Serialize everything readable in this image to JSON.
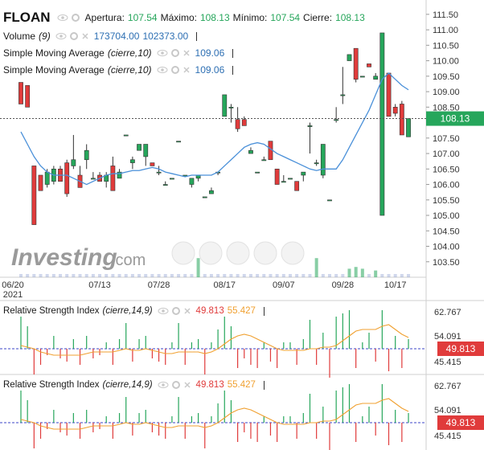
{
  "header": {
    "symbol": "FLOAN",
    "open_label": "Apertura:",
    "open": "107.54",
    "high_label": "Máximo:",
    "high": "108.13",
    "low_label": "Mínimo:",
    "low": "107.54",
    "close_label": "Cierre:",
    "close": "108.13"
  },
  "volume_legend": {
    "label": "Volume",
    "param": "(9)",
    "v1": "173704.00",
    "v2": "102373.00"
  },
  "sma_legends": [
    {
      "label": "Simple Moving Average",
      "param": "(cierre,10)",
      "value": "109.06"
    },
    {
      "label": "Simple Moving Average",
      "param": "(cierre,10)",
      "value": "109.06"
    }
  ],
  "rsi_panels": [
    {
      "label": "Relative Strength Index",
      "param": "(cierre,14,9)",
      "v1": "49.813",
      "v2": "55.427",
      "scale": [
        "62.767",
        "54.091",
        "45.415"
      ],
      "current": "49.813"
    },
    {
      "label": "Relative Strength Index",
      "param": "(cierre,14,9)",
      "v1": "49.813",
      "v2": "55.427",
      "scale": [
        "62.767",
        "54.091",
        "45.415"
      ],
      "current": "49.813"
    }
  ],
  "watermark": {
    "brand": "Investing",
    "suffix": ".com"
  },
  "colors": {
    "up": "#26a65b",
    "down": "#e03b3b",
    "sma": "#4a90d9",
    "rsi_signal": "#f0a030",
    "price_tag": "#26a65b",
    "rsi_tag": "#e03b3b"
  },
  "chart_data": {
    "type": "candlestick",
    "price_axis": [
      "111.50",
      "111.00",
      "110.50",
      "110.00",
      "109.50",
      "109.00",
      "108.50",
      "108.00",
      "107.50",
      "107.00",
      "106.50",
      "106.00",
      "105.50",
      "105.00",
      "104.50",
      "104.00",
      "103.50"
    ],
    "ylim": [
      103.0,
      111.6
    ],
    "current_price": "108.13",
    "x_labels": [
      "06/20\n2021",
      "07/13",
      "07/28",
      "08/17",
      "09/07",
      "09/28",
      "10/17"
    ],
    "candles": [
      {
        "o": 109.3,
        "h": 109.3,
        "l": 108.6,
        "c": 108.6
      },
      {
        "o": 109.2,
        "h": 109.2,
        "l": 108.5,
        "c": 108.5
      },
      {
        "o": 106.6,
        "h": 106.6,
        "l": 104.7,
        "c": 104.7
      },
      {
        "o": 106.3,
        "h": 106.3,
        "l": 105.8,
        "c": 105.8
      },
      {
        "o": 106.0,
        "h": 106.5,
        "l": 105.9,
        "c": 106.4
      },
      {
        "o": 106.1,
        "h": 106.6,
        "l": 106.0,
        "c": 106.5
      },
      {
        "o": 106.5,
        "h": 106.6,
        "l": 106.1,
        "c": 106.1
      },
      {
        "o": 106.7,
        "h": 106.8,
        "l": 105.6,
        "c": 105.7
      },
      {
        "o": 106.6,
        "h": 107.6,
        "l": 106.5,
        "c": 106.8
      },
      {
        "o": 106.3,
        "h": 106.6,
        "l": 105.9,
        "c": 105.9
      },
      {
        "o": 106.8,
        "h": 107.3,
        "l": 106.5,
        "c": 107.1
      },
      {
        "o": 106.2,
        "h": 106.4,
        "l": 106.2,
        "c": 106.2
      },
      {
        "o": 106.3,
        "h": 106.4,
        "l": 106.1,
        "c": 106.1
      },
      {
        "o": 106.1,
        "h": 106.4,
        "l": 105.9,
        "c": 106.3
      },
      {
        "o": 106.6,
        "h": 106.9,
        "l": 105.8,
        "c": 105.8
      },
      {
        "o": 106.2,
        "h": 106.5,
        "l": 106.2,
        "c": 106.4
      },
      {
        "o": 107.6,
        "h": 107.6,
        "l": 107.6,
        "c": 107.6
      },
      {
        "o": 106.7,
        "h": 106.9,
        "l": 106.5,
        "c": 106.8
      },
      {
        "o": 107.1,
        "h": 107.3,
        "l": 107.1,
        "c": 107.3
      },
      {
        "o": 106.9,
        "h": 107.3,
        "l": 106.6,
        "c": 107.3
      },
      {
        "o": 106.7,
        "h": 106.7,
        "l": 106.6,
        "c": 106.6
      },
      {
        "o": 106.4,
        "h": 106.6,
        "l": 106.3,
        "c": 106.4
      },
      {
        "o": 106.0,
        "h": 106.1,
        "l": 106.0,
        "c": 106.0
      },
      {
        "o": 106.2,
        "h": 106.2,
        "l": 106.2,
        "c": 106.2
      },
      {
        "o": 107.4,
        "h": 107.4,
        "l": 107.4,
        "c": 107.4
      },
      {
        "o": 106.3,
        "h": 106.3,
        "l": 106.3,
        "c": 106.3
      },
      {
        "o": 106.0,
        "h": 106.2,
        "l": 105.9,
        "c": 106.2
      },
      {
        "o": 106.2,
        "h": 106.3,
        "l": 106.1,
        "c": 106.3
      },
      {
        "o": 105.6,
        "h": 105.6,
        "l": 105.6,
        "c": 105.6
      },
      {
        "o": 105.7,
        "h": 105.9,
        "l": 105.7,
        "c": 105.8
      },
      {
        "o": 106.4,
        "h": 106.4,
        "l": 106.3,
        "c": 106.4
      },
      {
        "o": 108.2,
        "h": 108.9,
        "l": 108.2,
        "c": 108.9
      },
      {
        "o": 108.5,
        "h": 108.6,
        "l": 108.0,
        "c": 108.5
      },
      {
        "o": 108.1,
        "h": 108.5,
        "l": 107.7,
        "c": 107.8
      },
      {
        "o": 108.1,
        "h": 108.2,
        "l": 107.9,
        "c": 107.9
      },
      {
        "o": 107.0,
        "h": 107.2,
        "l": 107.0,
        "c": 107.1
      },
      {
        "o": 106.4,
        "h": 106.4,
        "l": 106.4,
        "c": 106.4
      },
      {
        "o": 106.8,
        "h": 106.9,
        "l": 106.8,
        "c": 106.8
      },
      {
        "o": 107.4,
        "h": 107.4,
        "l": 106.8,
        "c": 106.8
      },
      {
        "o": 106.5,
        "h": 106.5,
        "l": 106.0,
        "c": 106.0
      },
      {
        "o": 106.1,
        "h": 106.3,
        "l": 106.1,
        "c": 106.1
      },
      {
        "o": 106.2,
        "h": 106.2,
        "l": 106.2,
        "c": 106.2
      },
      {
        "o": 106.1,
        "h": 106.1,
        "l": 105.8,
        "c": 105.8
      },
      {
        "o": 106.3,
        "h": 106.4,
        "l": 106.1,
        "c": 106.4
      },
      {
        "o": 107.9,
        "h": 108.0,
        "l": 107.0,
        "c": 107.9
      },
      {
        "o": 106.7,
        "h": 106.8,
        "l": 106.6,
        "c": 106.7
      },
      {
        "o": 106.3,
        "h": 107.3,
        "l": 106.2,
        "c": 107.3
      },
      {
        "o": 105.5,
        "h": 105.5,
        "l": 105.5,
        "c": 105.5
      },
      {
        "o": 108.1,
        "h": 108.5,
        "l": 108.0,
        "c": 108.1
      },
      {
        "o": 108.9,
        "h": 109.8,
        "l": 108.6,
        "c": 108.9
      },
      {
        "o": 110.0,
        "h": 110.2,
        "l": 110.0,
        "c": 110.2
      },
      {
        "o": 110.4,
        "h": 110.4,
        "l": 109.3,
        "c": 109.4
      },
      {
        "o": 109.5,
        "h": 109.5,
        "l": 109.5,
        "c": 109.5
      },
      {
        "o": 109.9,
        "h": 109.9,
        "l": 109.8,
        "c": 109.8
      },
      {
        "o": 109.4,
        "h": 109.6,
        "l": 109.4,
        "c": 109.5
      },
      {
        "o": 105.0,
        "h": 110.9,
        "l": 105.0,
        "c": 110.9
      },
      {
        "o": 109.6,
        "h": 109.6,
        "l": 108.2,
        "c": 108.2
      },
      {
        "o": 108.5,
        "h": 108.6,
        "l": 108.2,
        "c": 108.3
      },
      {
        "o": 108.6,
        "h": 108.7,
        "l": 107.6,
        "c": 107.6
      },
      {
        "o": 107.54,
        "h": 108.13,
        "l": 107.54,
        "c": 108.13
      }
    ],
    "sma": [
      107.7,
      107.3,
      106.9,
      106.6,
      106.4,
      106.3,
      106.3,
      106.3,
      106.2,
      106.1,
      106.0,
      106.1,
      106.2,
      106.3,
      106.35,
      106.35,
      106.4,
      106.45,
      106.45,
      106.5,
      106.55,
      106.5,
      106.4,
      106.35,
      106.3,
      106.25,
      106.3,
      106.3,
      106.3,
      106.3,
      106.4,
      106.6,
      106.8,
      107.0,
      107.2,
      107.3,
      107.35,
      107.3,
      107.15,
      107.0,
      106.9,
      106.8,
      106.7,
      106.6,
      106.5,
      106.45,
      106.5,
      106.5,
      106.5,
      106.8,
      107.2,
      107.6,
      108.0,
      108.4,
      108.9,
      109.4,
      109.6,
      109.4,
      109.2,
      109.06
    ],
    "volume": [
      0,
      0,
      0,
      0,
      0,
      0,
      0,
      0,
      0,
      0,
      0,
      0,
      0,
      0,
      0,
      0,
      0,
      0,
      0,
      0,
      0,
      0,
      0,
      0,
      0,
      0,
      0,
      0.9,
      0,
      0,
      0,
      0,
      0,
      0,
      0,
      0,
      0,
      0,
      0,
      0,
      0,
      0,
      0,
      0,
      0,
      0.9,
      0,
      0,
      0,
      0,
      0.3,
      0.4,
      0.3,
      0,
      0.2,
      0,
      0,
      0,
      0,
      0
    ],
    "rsi": [
      1.0,
      0.7,
      -0.8,
      -0.5,
      -0.2,
      0.4,
      -0.3,
      -0.4,
      0.3,
      -0.5,
      0.4,
      -0.3,
      -0.2,
      0.2,
      -0.5,
      0.3,
      0.8,
      -0.4,
      0.3,
      0.4,
      -0.3,
      -0.4,
      -0.5,
      0.2,
      0.8,
      -0.5,
      0.2,
      0.3,
      -0.8,
      0.2,
      0.6,
      1.0,
      0.7,
      -0.6,
      -0.3,
      -0.5,
      -0.6,
      0.2,
      -0.4,
      -0.6,
      0.2,
      0.2,
      -0.5,
      0.3,
      0.9,
      -0.5,
      0.5,
      -0.9,
      1.0,
      1.1,
      1.2,
      -0.6,
      0.2,
      0.5,
      -0.4,
      1.2,
      -0.7,
      0.4,
      -0.6,
      0.3
    ],
    "rsi_signal": [
      0.1,
      0.05,
      0.0,
      -0.1,
      -0.15,
      -0.2,
      -0.2,
      -0.2,
      -0.2,
      -0.2,
      -0.15,
      -0.1,
      -0.1,
      -0.1,
      -0.1,
      -0.05,
      0.0,
      -0.05,
      -0.05,
      0.0,
      -0.05,
      -0.1,
      -0.15,
      -0.15,
      -0.1,
      -0.1,
      -0.1,
      -0.1,
      -0.15,
      -0.1,
      0.0,
      0.15,
      0.3,
      0.4,
      0.45,
      0.4,
      0.3,
      0.2,
      0.1,
      0.0,
      -0.05,
      -0.05,
      -0.05,
      -0.05,
      0.0,
      0.0,
      0.05,
      0.05,
      0.1,
      0.25,
      0.4,
      0.55,
      0.6,
      0.6,
      0.6,
      0.7,
      0.75,
      0.6,
      0.45,
      0.35
    ]
  }
}
